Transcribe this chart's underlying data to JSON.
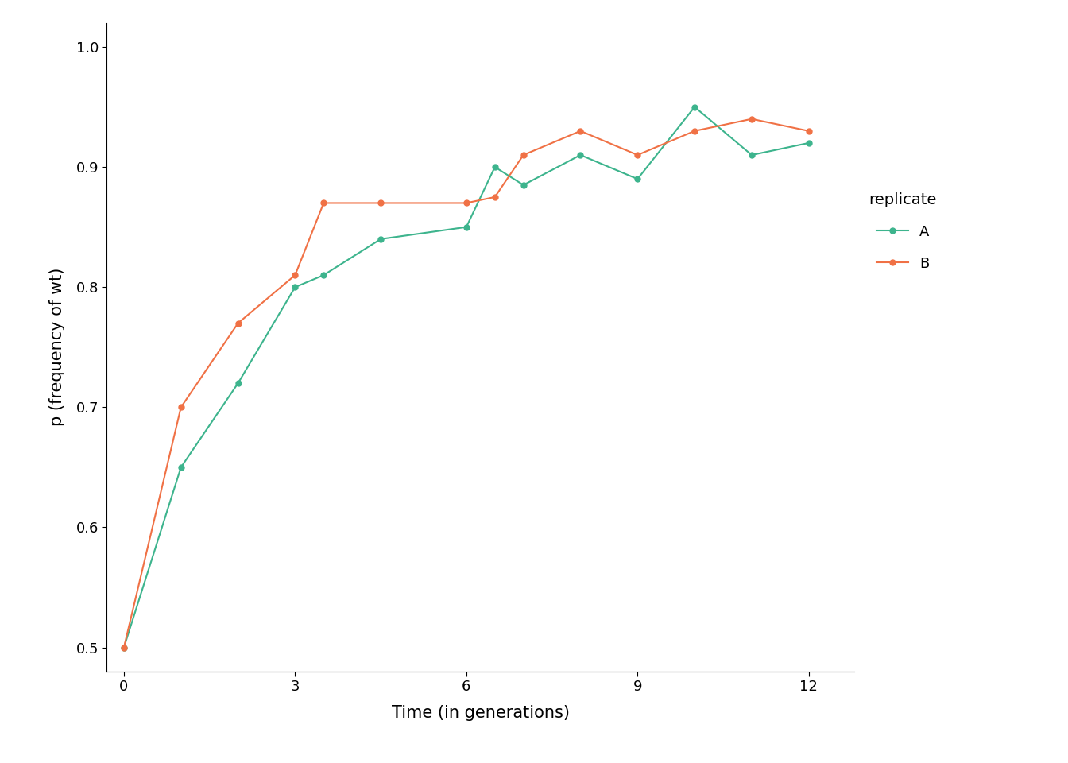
{
  "series_A": {
    "x": [
      0,
      1,
      2,
      3,
      3.5,
      4.5,
      6,
      6.5,
      7,
      8,
      9,
      10,
      11,
      12
    ],
    "y": [
      0.5,
      0.65,
      0.72,
      0.8,
      0.81,
      0.84,
      0.85,
      0.9,
      0.885,
      0.91,
      0.89,
      0.95,
      0.91,
      0.92
    ],
    "color": "#3db48d",
    "label": "A"
  },
  "series_B": {
    "x": [
      0,
      1,
      2,
      3,
      3.5,
      4.5,
      6,
      6.5,
      7,
      8,
      9,
      10,
      11,
      12
    ],
    "y": [
      0.5,
      0.7,
      0.77,
      0.81,
      0.87,
      0.87,
      0.87,
      0.875,
      0.91,
      0.93,
      0.91,
      0.93,
      0.94,
      0.93
    ],
    "color": "#f07145",
    "label": "B"
  },
  "xlabel": "Time (in generations)",
  "ylabel": "p (frequency of wt)",
  "legend_title": "replicate",
  "xlim": [
    -0.3,
    12.8
  ],
  "ylim": [
    0.48,
    1.02
  ],
  "xticks": [
    0,
    3,
    6,
    9,
    12
  ],
  "yticks": [
    0.5,
    0.6,
    0.7,
    0.8,
    0.9,
    1.0
  ],
  "background_color": "#ffffff",
  "marker_size": 5,
  "line_width": 1.5,
  "panel_background": "#ffffff",
  "axis_text_size": 13,
  "axis_label_size": 15,
  "legend_title_size": 14,
  "legend_text_size": 13
}
